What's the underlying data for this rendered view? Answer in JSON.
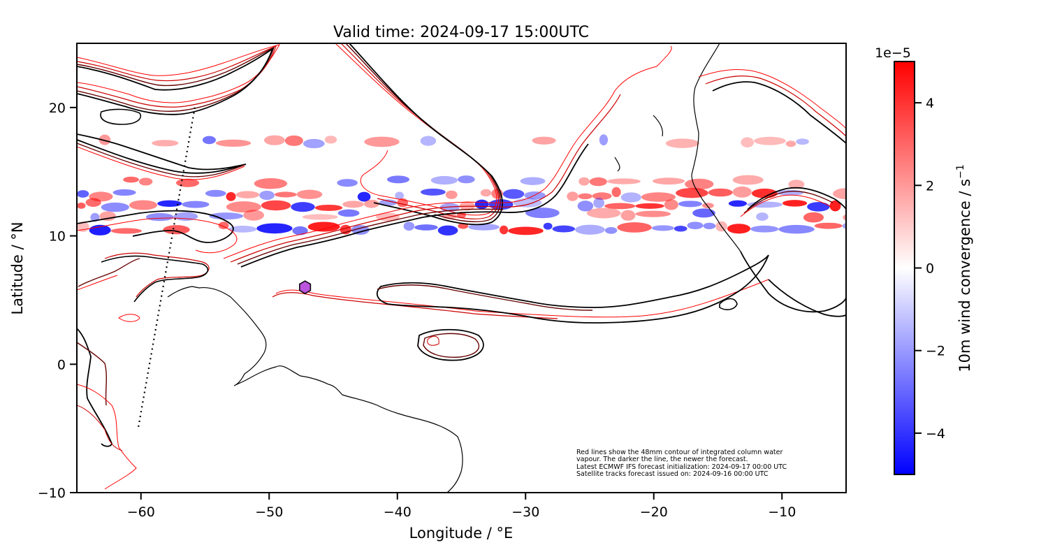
{
  "chart_data": {
    "type": "map",
    "title": "Valid time: 2024-09-17 15:00UTC",
    "xlabel": "Longitude / °E",
    "ylabel": "Latitude / °N",
    "xlim": [
      -65,
      -5
    ],
    "ylim": [
      -10,
      25
    ],
    "x_ticks": [
      {
        "value": -60,
        "label": "−60"
      },
      {
        "value": -50,
        "label": "−50"
      },
      {
        "value": -40,
        "label": "−40"
      },
      {
        "value": -30,
        "label": "−30"
      },
      {
        "value": -20,
        "label": "−20"
      },
      {
        "value": -10,
        "label": "−10"
      }
    ],
    "y_ticks": [
      {
        "value": -10,
        "label": "−10"
      },
      {
        "value": 0,
        "label": "0"
      },
      {
        "value": 10,
        "label": "10"
      },
      {
        "value": 20,
        "label": "20"
      }
    ],
    "colorbar": {
      "label": "10m wind convergence / s",
      "label_superscript": "−1",
      "exponent_label": "1e−5",
      "range": [
        -5,
        5
      ],
      "ticks": [
        {
          "value": 4,
          "label": "4"
        },
        {
          "value": 2,
          "label": "2"
        },
        {
          "value": 0,
          "label": "0"
        },
        {
          "value": -2,
          "label": "−2"
        },
        {
          "value": -4,
          "label": "−4"
        }
      ],
      "colors": {
        "low": "#0000ff",
        "mid": "#ffffff",
        "high": "#ff0000"
      }
    },
    "convergence_bands": [
      {
        "lat": 17.3,
        "intensity": 0.4
      },
      {
        "lat": 14.2,
        "intensity": 0.5
      },
      {
        "lat": 13.2,
        "intensity": 0.8
      },
      {
        "lat": 12.4,
        "intensity": 0.9
      },
      {
        "lat": 11.6,
        "intensity": 0.5
      },
      {
        "lat": 10.6,
        "intensity": 0.9
      }
    ],
    "marker": {
      "name": "hexagon",
      "lon": -47.2,
      "lat": 6.0,
      "color": "#bb55dd"
    },
    "satellite_track": [
      {
        "lon": -55.8,
        "lat": 20.0
      },
      {
        "lon": -60.2,
        "lat": -4.9
      }
    ],
    "contour_colors": {
      "newest": "#000000",
      "mid": "#660000",
      "old": "#cc0000",
      "oldest": "#ff0000"
    },
    "annotation": "Red lines show the 48mm contour of integrated column water\nvapour. The darker the line, the newer the forecast.\nLatest ECMWF IFS forecast initialization: 2024-09-17 00:00 UTC\nSatellite tracks forecast issued on: 2024-09-16 00:00 UTC"
  }
}
